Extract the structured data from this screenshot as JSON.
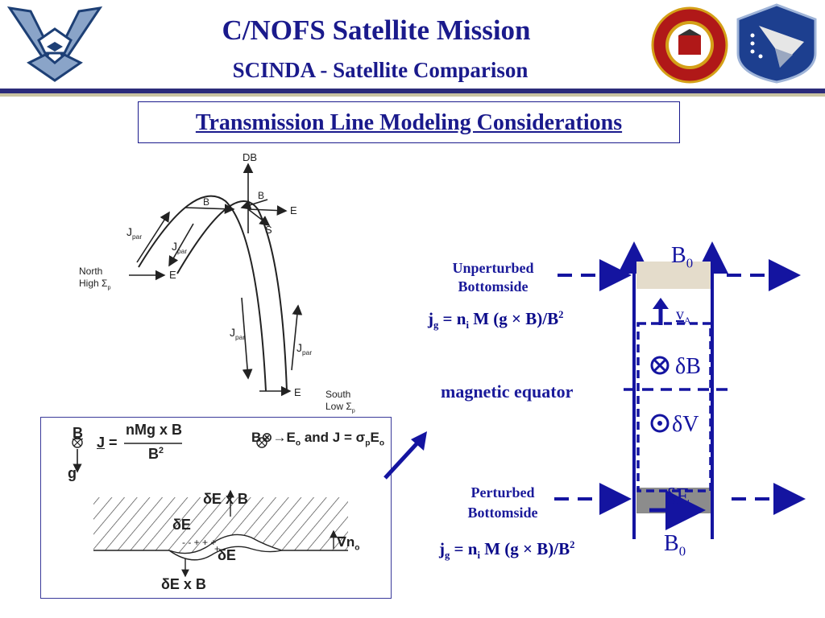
{
  "header": {
    "title": "C/NOFS Satellite Mission",
    "subtitle": "SCINDA - Satellite Comparison"
  },
  "section_title": "Transmission Line Modeling Considerations",
  "left_diagram": {
    "top_label": "DB",
    "b_label_1": "B",
    "b_label_2": "B",
    "e_label_top": "E",
    "s_label": "S",
    "jpar_1": "J",
    "jpar_2": "J",
    "jpar_3": "J",
    "jpar_4": "J",
    "par_sub": "par",
    "north_line1": "North",
    "north_line2": "High Σ",
    "north_e": "E",
    "south_line1": "South",
    "south_line2": "Low Σ",
    "south_e": "E",
    "p_sub": "p"
  },
  "inset": {
    "b_label": "B",
    "j_label": "J",
    "eq_sign": "=",
    "numerator": "nMg x B",
    "denominator": "B",
    "denominator_sup": "2",
    "g_label": "g",
    "right_eq": "B⊗→E",
    "right_eq_and": " and ",
    "right_eq_j": "J = σ",
    "right_eq_p": "p",
    "right_eq_e": "E",
    "right_eq_o": "o",
    "deltaE_x_B_top": "δE x B",
    "deltaE_left": "δE",
    "deltaE_right": "δE",
    "grad_n": "∇n",
    "grad_sub": "o",
    "deltaE_x_B_bottom": "δE x B"
  },
  "right_diagram": {
    "unperturbed_line1": "Unperturbed",
    "unperturbed_line2": "Bottomside",
    "jg_eq_top": "j",
    "jg_eq_rest": " = n",
    "jg_eq_tail": " M (g × B)/B",
    "magnetic_equator": "magnetic equator",
    "perturbed_line1": "Perturbed",
    "perturbed_line2": "Bottomside",
    "b0_top": "B",
    "b0_bottom": "B",
    "b0_sub": "0",
    "va": "v",
    "va_sub": "A",
    "delta_b": "δB",
    "delta_v": "δV",
    "delta_e": "δE",
    "g_sub": "g",
    "i_sub": "i",
    "sq": "2"
  },
  "colors": {
    "navy": "#1a1a8c",
    "diagram_blue": "#1414a0",
    "unperturbed_fill": "#e4dccb",
    "perturbed_fill": "#8c8c8c"
  }
}
